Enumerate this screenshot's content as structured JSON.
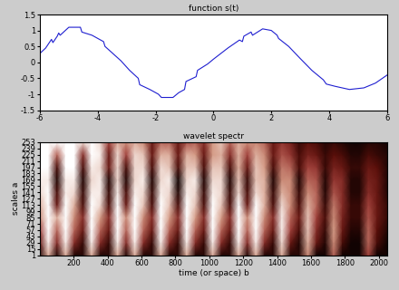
{
  "chart_data": [
    {
      "type": "line",
      "title": "function s(t)",
      "color": "#1f1fd0",
      "x": [
        -6.0,
        -5.8,
        -5.6,
        -5.55,
        -5.4,
        -5.35,
        -5.3,
        -5.0,
        -4.6,
        -4.55,
        -4.2,
        -3.8,
        -3.75,
        -3.2,
        -2.9,
        -2.6,
        -2.55,
        -2.2,
        -1.9,
        -1.8,
        -1.4,
        -1.2,
        -1.0,
        -0.95,
        -0.6,
        -0.55,
        -0.2,
        0.0,
        0.5,
        0.9,
        1.0,
        1.05,
        1.3,
        1.35,
        1.7,
        2.0,
        2.2,
        2.25,
        2.6,
        3.0,
        3.4,
        3.8,
        3.9,
        4.2,
        4.7,
        5.2,
        5.6,
        6.0
      ],
      "values": [
        0.28,
        0.45,
        0.72,
        0.62,
        0.82,
        0.92,
        0.85,
        1.1,
        1.1,
        0.95,
        0.85,
        0.65,
        0.5,
        0.05,
        -0.25,
        -0.5,
        -0.7,
        -0.85,
        -1.0,
        -1.1,
        -1.1,
        -0.95,
        -0.85,
        -0.6,
        -0.45,
        -0.25,
        -0.05,
        0.1,
        0.45,
        0.7,
        0.65,
        0.82,
        0.95,
        0.85,
        1.05,
        1.0,
        0.85,
        0.75,
        0.5,
        0.12,
        -0.25,
        -0.55,
        -0.68,
        -0.75,
        -0.85,
        -0.8,
        -0.65,
        -0.4
      ],
      "xlim": [
        -6,
        6
      ],
      "xticks": [
        -6,
        -4,
        -2,
        0,
        2,
        4,
        6
      ],
      "ylim": [
        -1.5,
        1.5
      ],
      "yticks": [
        -1.5,
        -1,
        -0.5,
        0,
        0.5,
        1,
        1.5
      ]
    },
    {
      "type": "heatmap",
      "title": "wavelet spectr",
      "x_label": "time (or space) b",
      "y_label": "scales a",
      "x": [
        0,
        51,
        102,
        153,
        204,
        255,
        306,
        357,
        408,
        459,
        510,
        561,
        612,
        663,
        714,
        765,
        816,
        867,
        918,
        969,
        1020,
        1071,
        1122,
        1173,
        1224,
        1275,
        1326,
        1377,
        1428,
        1479,
        1530,
        1581,
        1632,
        1683,
        1734,
        1785,
        1836,
        1887,
        1938,
        1989,
        2048
      ],
      "y": [
        1,
        29,
        57,
        85,
        113,
        141,
        169,
        197,
        225,
        253
      ],
      "cells": [
        [
          0.1,
          0.8,
          0.1,
          0.8,
          0.1,
          0.1,
          0.8,
          0.1,
          0.1,
          0.8,
          0.1,
          0.8,
          0.1,
          0.1,
          0.8,
          0.1,
          0.1,
          0.8,
          0.1,
          0.1,
          0.8,
          0.1,
          0.1,
          0.8,
          0.1,
          0.8,
          0.1,
          0.1,
          0.8,
          0.1,
          0.1,
          0.7,
          0.05,
          0.05,
          0.6,
          0.05,
          0.05,
          0.05,
          0.5,
          0.05,
          0.05
        ],
        [
          0.3,
          0.95,
          0.4,
          0.95,
          0.4,
          0.15,
          0.95,
          0.4,
          0.15,
          0.95,
          0.4,
          0.95,
          0.4,
          0.15,
          0.95,
          0.4,
          0.15,
          0.95,
          0.4,
          0.15,
          0.95,
          0.4,
          0.15,
          0.95,
          0.4,
          0.95,
          0.4,
          0.15,
          0.9,
          0.3,
          0.1,
          0.8,
          0.3,
          0.1,
          0.7,
          0.2,
          0.05,
          0.05,
          0.6,
          0.2,
          0.05
        ],
        [
          0.5,
          1.0,
          0.6,
          1.0,
          0.6,
          0.3,
          1.0,
          0.6,
          0.3,
          1.0,
          0.6,
          1.0,
          0.6,
          0.3,
          1.0,
          0.6,
          0.3,
          1.0,
          0.6,
          0.3,
          1.0,
          0.6,
          0.3,
          1.0,
          0.6,
          1.0,
          0.6,
          0.3,
          0.95,
          0.5,
          0.2,
          0.85,
          0.4,
          0.15,
          0.75,
          0.3,
          0.1,
          0.1,
          0.6,
          0.25,
          0.1
        ],
        [
          0.7,
          1.0,
          0.8,
          1.0,
          0.7,
          0.4,
          1.0,
          0.75,
          0.4,
          1.0,
          0.7,
          1.0,
          0.7,
          0.4,
          1.0,
          0.75,
          0.4,
          1.0,
          0.75,
          0.4,
          1.0,
          0.75,
          0.4,
          1.0,
          0.7,
          1.0,
          0.7,
          0.4,
          0.95,
          0.6,
          0.3,
          0.85,
          0.5,
          0.2,
          0.7,
          0.35,
          0.15,
          0.15,
          0.55,
          0.3,
          0.15
        ],
        [
          0.8,
          1.0,
          0.3,
          1.0,
          0.8,
          0.2,
          1.0,
          0.9,
          0.2,
          1.0,
          0.3,
          1.0,
          0.85,
          0.2,
          1.0,
          0.85,
          0.2,
          1.0,
          0.85,
          0.2,
          1.0,
          0.85,
          0.2,
          1.0,
          0.3,
          1.0,
          0.8,
          0.2,
          0.9,
          0.7,
          0.2,
          0.8,
          0.6,
          0.15,
          0.65,
          0.4,
          0.15,
          0.15,
          0.5,
          0.3,
          0.15
        ],
        [
          0.9,
          1.0,
          0.2,
          0.95,
          0.9,
          0.15,
          0.95,
          0.95,
          0.15,
          0.95,
          0.2,
          0.95,
          0.9,
          0.15,
          0.95,
          0.9,
          0.1,
          0.95,
          0.9,
          0.15,
          0.95,
          0.9,
          0.15,
          0.9,
          0.2,
          0.9,
          0.8,
          0.15,
          0.8,
          0.7,
          0.15,
          0.7,
          0.6,
          0.1,
          0.55,
          0.4,
          0.1,
          0.1,
          0.4,
          0.3,
          0.1
        ],
        [
          0.95,
          0.95,
          0.1,
          0.95,
          0.95,
          0.1,
          0.9,
          0.95,
          0.1,
          0.9,
          0.1,
          0.9,
          0.95,
          0.1,
          0.9,
          0.95,
          0.05,
          0.9,
          0.95,
          0.1,
          0.9,
          0.9,
          0.1,
          0.85,
          0.15,
          0.85,
          0.8,
          0.1,
          0.7,
          0.7,
          0.1,
          0.6,
          0.55,
          0.1,
          0.45,
          0.4,
          0.1,
          0.1,
          0.35,
          0.3,
          0.1
        ],
        [
          1.0,
          1.0,
          0.2,
          1.0,
          1.0,
          0.2,
          0.95,
          0.9,
          0.3,
          0.9,
          0.2,
          0.9,
          0.9,
          0.2,
          0.9,
          0.85,
          0.2,
          0.85,
          0.85,
          0.2,
          0.85,
          0.85,
          0.2,
          0.8,
          0.3,
          0.85,
          0.75,
          0.2,
          0.65,
          0.6,
          0.2,
          0.5,
          0.45,
          0.15,
          0.35,
          0.3,
          0.15,
          0.15,
          0.3,
          0.25,
          0.1
        ],
        [
          1.0,
          1.0,
          0.6,
          1.0,
          1.0,
          0.4,
          1.0,
          0.95,
          0.3,
          0.9,
          0.5,
          0.9,
          0.85,
          0.3,
          0.8,
          0.8,
          0.3,
          0.8,
          0.75,
          0.3,
          0.75,
          0.8,
          0.4,
          0.8,
          0.5,
          0.8,
          0.7,
          0.3,
          0.55,
          0.45,
          0.2,
          0.35,
          0.3,
          0.15,
          0.25,
          0.2,
          0.1,
          0.1,
          0.2,
          0.15,
          0.1
        ],
        [
          1.0,
          1.0,
          1.0,
          1.0,
          1.0,
          0.9,
          1.0,
          0.9,
          0.5,
          0.8,
          0.7,
          0.8,
          0.7,
          0.3,
          0.6,
          0.6,
          0.3,
          0.55,
          0.6,
          0.4,
          0.75,
          0.85,
          0.6,
          0.8,
          0.7,
          0.7,
          0.6,
          0.3,
          0.45,
          0.35,
          0.15,
          0.25,
          0.2,
          0.1,
          0.15,
          0.1,
          0.05,
          0.05,
          0.1,
          0.1,
          0.05
        ]
      ],
      "color_range": [
        0,
        1
      ],
      "xlim": [
        1,
        2048
      ],
      "xticks": [
        200,
        400,
        600,
        800,
        1000,
        1200,
        1400,
        1600,
        1800,
        2000
      ],
      "ylim": [
        1,
        253
      ],
      "yticks": [
        1,
        15,
        29,
        43,
        57,
        71,
        85,
        99,
        113,
        127,
        141,
        155,
        169,
        183,
        197,
        211,
        225,
        239,
        253
      ]
    }
  ]
}
